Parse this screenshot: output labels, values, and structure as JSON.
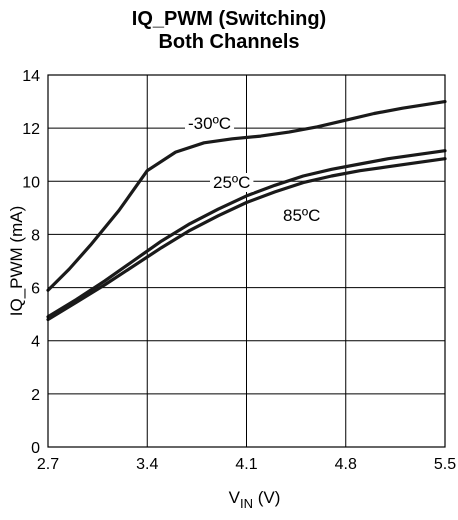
{
  "chart_data": {
    "type": "line",
    "title": "IQ_PWM (Switching)",
    "subtitle": "Both Channels",
    "xlabel": {
      "main": "V",
      "sub": "IN",
      "unit": " (V)"
    },
    "ylabel": "IQ_PWM (mA)",
    "xlim": [
      2.7,
      5.5
    ],
    "ylim": [
      0,
      14
    ],
    "xticks": [
      "2.7",
      "3.4",
      "4.1",
      "4.8",
      "5.5"
    ],
    "yticks": [
      "0",
      "2",
      "4",
      "6",
      "8",
      "10",
      "12",
      "14"
    ],
    "grid": true,
    "series": [
      {
        "name": "-30°C",
        "x": [
          2.7,
          2.85,
          3.0,
          3.2,
          3.4,
          3.6,
          3.8,
          4.0,
          4.2,
          4.4,
          4.6,
          4.8,
          5.0,
          5.2,
          5.5
        ],
        "y": [
          5.9,
          6.7,
          7.6,
          8.9,
          10.4,
          11.1,
          11.45,
          11.6,
          11.7,
          11.85,
          12.05,
          12.3,
          12.55,
          12.75,
          13.0
        ]
      },
      {
        "name": "25°C",
        "x": [
          2.7,
          2.9,
          3.1,
          3.3,
          3.5,
          3.7,
          3.9,
          4.1,
          4.3,
          4.5,
          4.7,
          4.9,
          5.1,
          5.3,
          5.5
        ],
        "y": [
          4.9,
          5.55,
          6.25,
          7.0,
          7.75,
          8.4,
          8.95,
          9.45,
          9.85,
          10.2,
          10.45,
          10.65,
          10.85,
          11.0,
          11.15
        ]
      },
      {
        "name": "85°C",
        "x": [
          2.7,
          2.9,
          3.1,
          3.3,
          3.5,
          3.7,
          3.9,
          4.1,
          4.3,
          4.5,
          4.7,
          4.9,
          5.1,
          5.3,
          5.5
        ],
        "y": [
          4.8,
          5.45,
          6.1,
          6.8,
          7.5,
          8.15,
          8.7,
          9.2,
          9.6,
          9.95,
          10.2,
          10.4,
          10.55,
          10.7,
          10.85
        ]
      }
    ],
    "annotations": [
      {
        "text": "-30ºC",
        "series": "-30°C"
      },
      {
        "text": "25ºC",
        "series": "25°C"
      },
      {
        "text": "85ºC",
        "series": "85°C"
      }
    ],
    "line_color": "#1a1a1a"
  }
}
